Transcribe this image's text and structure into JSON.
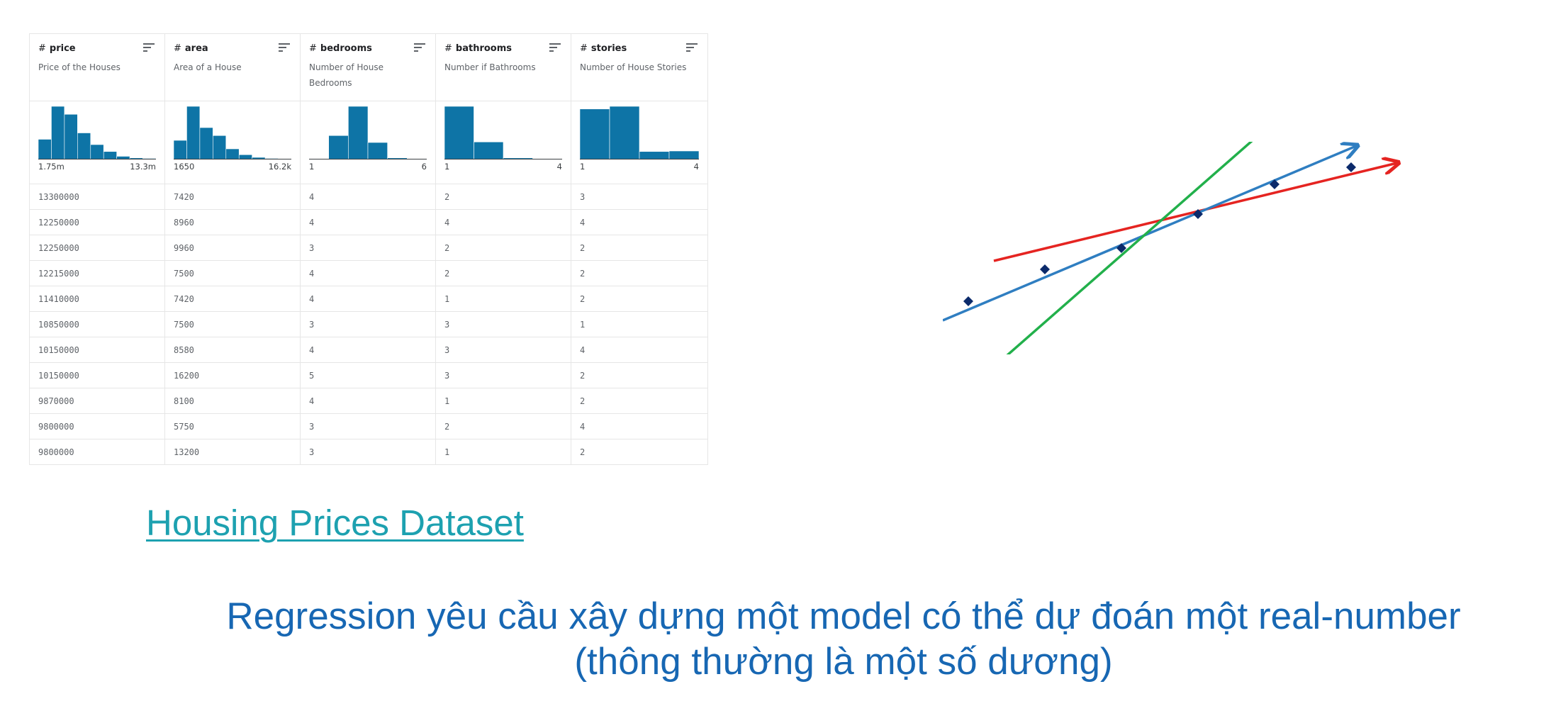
{
  "table": {
    "columns": [
      {
        "name": "price",
        "type_symbol": "#",
        "description": "Price of the Houses",
        "range_min": "1.75m",
        "range_max": "13.3m",
        "histogram": [
          0.38,
          1.0,
          0.85,
          0.5,
          0.28,
          0.15,
          0.06,
          0.03,
          0.02
        ]
      },
      {
        "name": "area",
        "type_symbol": "#",
        "description": "Area of a House",
        "range_min": "1650",
        "range_max": "16.2k",
        "histogram": [
          0.36,
          1.0,
          0.6,
          0.45,
          0.2,
          0.09,
          0.04,
          0.02,
          0.01
        ]
      },
      {
        "name": "bedrooms",
        "type_symbol": "#",
        "description": "Number of House Bedrooms",
        "range_min": "1",
        "range_max": "6",
        "histogram": [
          0.01,
          0.45,
          1.0,
          0.32,
          0.03,
          0.01
        ]
      },
      {
        "name": "bathrooms",
        "type_symbol": "#",
        "description": "Number if Bathrooms",
        "range_min": "1",
        "range_max": "4",
        "histogram": [
          1.0,
          0.33,
          0.03,
          0.01
        ]
      },
      {
        "name": "stories",
        "type_symbol": "#",
        "description": "Number of House Stories",
        "range_min": "1",
        "range_max": "4",
        "histogram": [
          0.95,
          1.0,
          0.15,
          0.16
        ]
      }
    ],
    "rows": [
      [
        "13300000",
        "7420",
        "4",
        "2",
        "3"
      ],
      [
        "12250000",
        "8960",
        "4",
        "4",
        "4"
      ],
      [
        "12250000",
        "9960",
        "3",
        "2",
        "2"
      ],
      [
        "12215000",
        "7500",
        "4",
        "2",
        "2"
      ],
      [
        "11410000",
        "7420",
        "4",
        "1",
        "2"
      ],
      [
        "10850000",
        "7500",
        "3",
        "3",
        "1"
      ],
      [
        "10150000",
        "8580",
        "4",
        "3",
        "4"
      ],
      [
        "10150000",
        "16200",
        "5",
        "3",
        "2"
      ],
      [
        "9870000",
        "8100",
        "4",
        "1",
        "2"
      ],
      [
        "9800000",
        "5750",
        "3",
        "2",
        "4"
      ],
      [
        "9800000",
        "13200",
        "3",
        "1",
        "2"
      ]
    ],
    "histogram_color": "#0e74a6"
  },
  "link": {
    "text": "Housing Prices Dataset",
    "color": "#1da1b0"
  },
  "caption": {
    "line1": "Regression yêu cầu xây dựng một model có thể dự đoán một real-number",
    "line2": "(thông thường là một số dương)",
    "color": "#1767b3"
  },
  "illustration": {
    "points": [
      [
        0.05,
        0.25
      ],
      [
        0.2,
        0.4
      ],
      [
        0.35,
        0.5
      ],
      [
        0.5,
        0.66
      ],
      [
        0.65,
        0.8
      ],
      [
        0.8,
        0.88
      ]
    ],
    "lines": [
      {
        "color": "#e52421",
        "from": [
          0.1,
          0.44
        ],
        "to": [
          0.89,
          0.9
        ]
      },
      {
        "color": "#2f7ec1",
        "from": [
          0.0,
          0.16
        ],
        "to": [
          0.81,
          0.98
        ]
      },
      {
        "color": "#22b04b",
        "from": [
          0.09,
          -0.08
        ],
        "to": [
          0.68,
          1.16
        ]
      }
    ],
    "point_color": "#0b2a6b"
  }
}
